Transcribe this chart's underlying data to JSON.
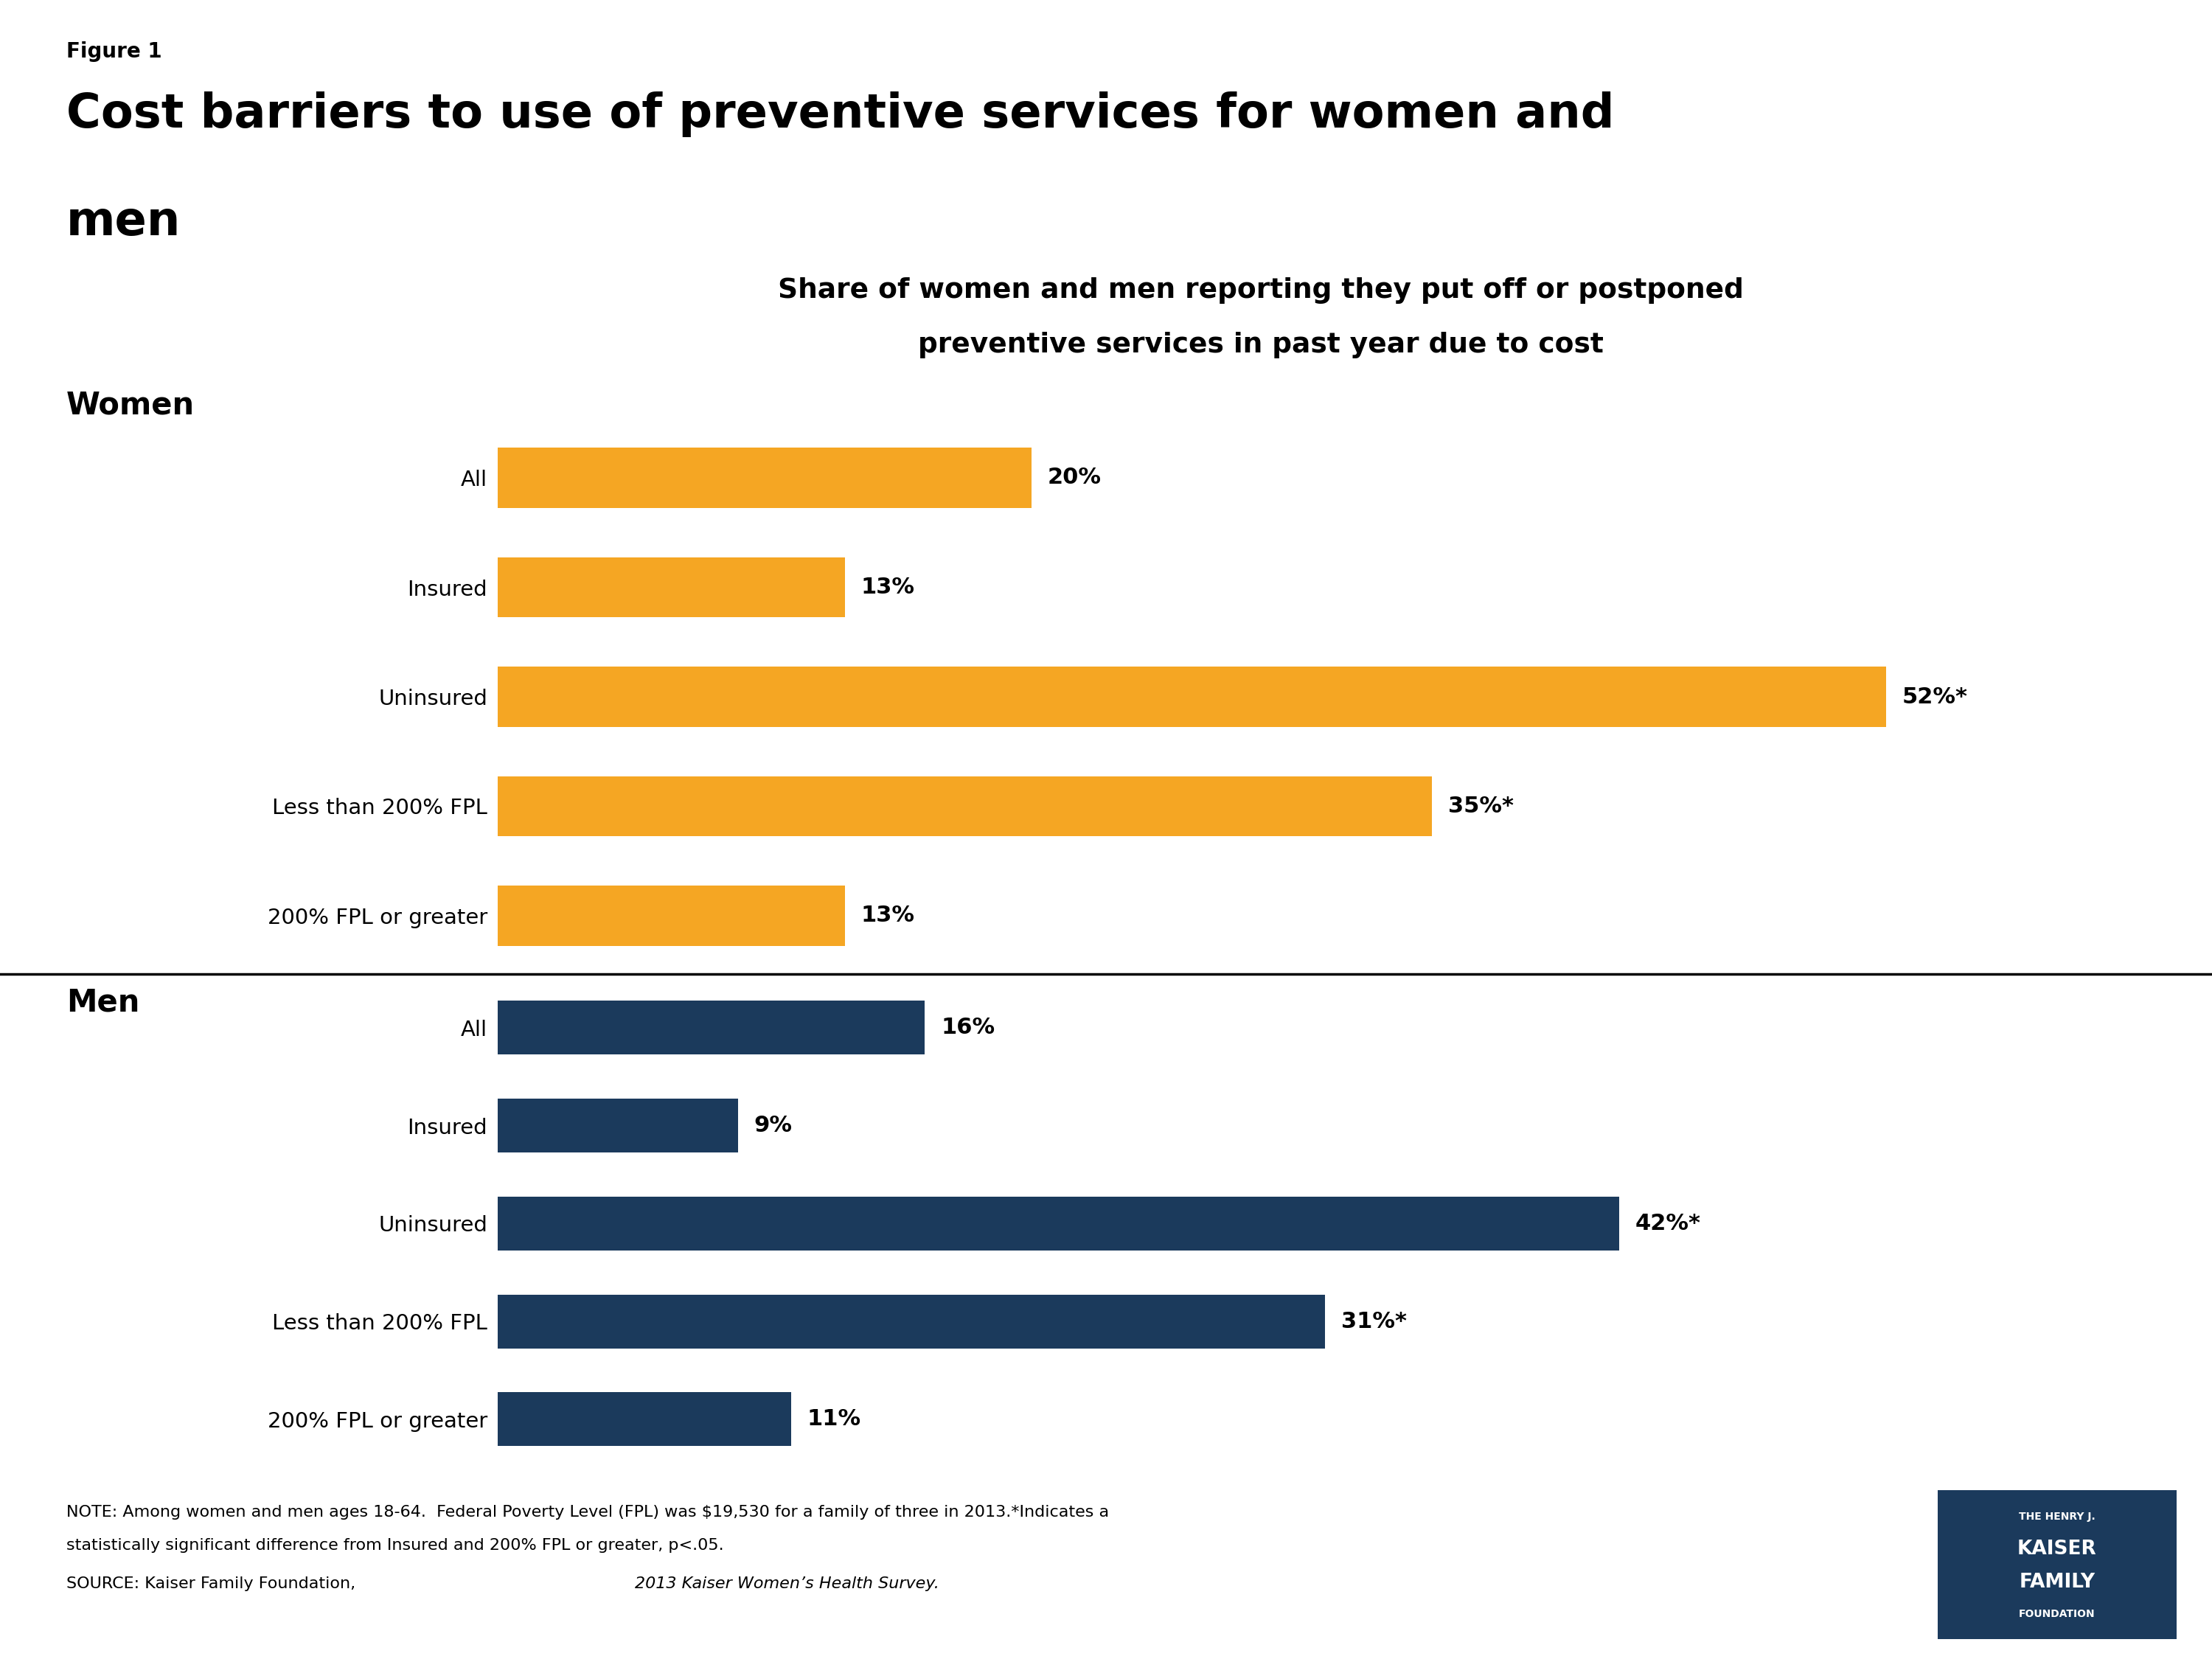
{
  "figure_label": "Figure 1",
  "title_line1": "Cost barriers to use of preventive services for women and",
  "title_line2": "men",
  "subtitle_line1": "Share of women and men reporting they put off or postponed",
  "subtitle_line2": "preventive services in past year due to cost",
  "women_labels": [
    "All",
    "Insured",
    "Uninsured",
    "Less than 200% FPL",
    "200% FPL or greater"
  ],
  "women_values": [
    20,
    13,
    52,
    35,
    13
  ],
  "women_annotations": [
    "20%",
    "13%",
    "52%*",
    "35%*",
    "13%"
  ],
  "men_labels": [
    "All",
    "Insured",
    "Uninsured",
    "Less than 200% FPL",
    "200% FPL or greater"
  ],
  "men_values": [
    16,
    9,
    42,
    31,
    11
  ],
  "men_annotations": [
    "16%",
    "9%",
    "42%*",
    "31%*",
    "11%"
  ],
  "women_color": "#F5A623",
  "men_color": "#1B3A5C",
  "background_color": "#FFFFFF",
  "women_group_label": "Women",
  "men_group_label": "Men",
  "note_line1": "NOTE: Among women and men ages 18-64.  Federal Poverty Level (FPL) was $19,530 for a family of three in 2013.*Indicates a",
  "note_line2": "statistically significant difference from Insured and 200% FPL or greater, p<.05.",
  "source_prefix": "SOURCE: Kaiser Family Foundation, ",
  "source_italic": "2013 Kaiser Women’s Health Survey.",
  "xlim_max": 58,
  "logo_line1": "THE HENRY J.",
  "logo_line2": "KAISER",
  "logo_line3": "FAMILY",
  "logo_line4": "FOUNDATION"
}
